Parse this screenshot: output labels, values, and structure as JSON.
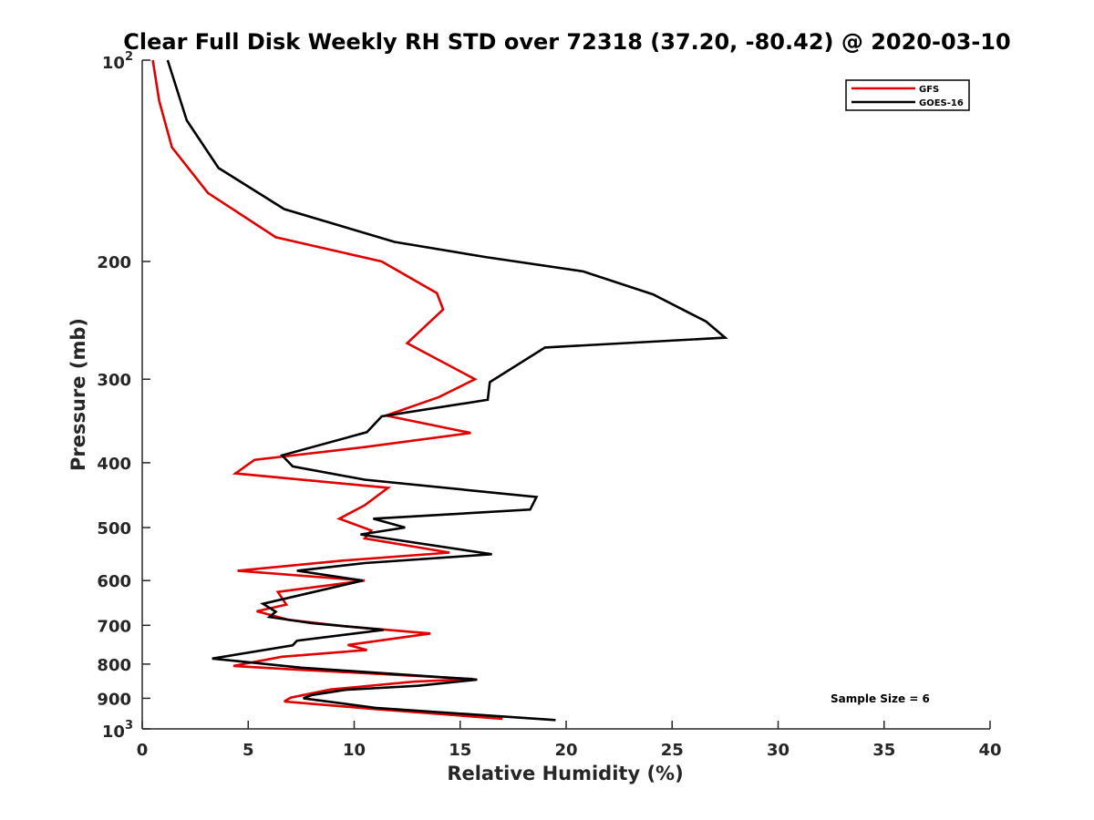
{
  "chart_data": {
    "type": "line",
    "title": "Clear Full Disk Weekly RH STD over 72318 (37.20, -80.42) @ 2020-03-10",
    "xlabel": "Relative Humidity (%)",
    "ylabel": "Pressure (mb)",
    "xlim": [
      0,
      40
    ],
    "ylim": [
      100,
      1000
    ],
    "y_scale": "log",
    "y_reversed": true,
    "grid": false,
    "legend_position": "top-right",
    "x_ticks": [
      0,
      5,
      10,
      15,
      20,
      25,
      30,
      35,
      40
    ],
    "x_tick_labels": [
      "0",
      "5",
      "10",
      "15",
      "20",
      "25",
      "30",
      "35",
      "40"
    ],
    "y_ticks": [
      200,
      300,
      400,
      500,
      600,
      700,
      800,
      900
    ],
    "y_tick_labels": [
      "200",
      "300",
      "400",
      "500",
      "600",
      "700",
      "800",
      "900"
    ],
    "y_decade_labels": [
      {
        "value": 100,
        "base": "10",
        "exp": "2"
      },
      {
        "value": 1000,
        "base": "10",
        "exp": "3"
      }
    ],
    "annotation": "Sample Size = 6",
    "series": [
      {
        "name": "GFS",
        "color": "#e00000",
        "points": [
          [
            0.5,
            100
          ],
          [
            0.8,
            115
          ],
          [
            1.4,
            135
          ],
          [
            3.1,
            158
          ],
          [
            6.3,
            184
          ],
          [
            11.3,
            200
          ],
          [
            13.9,
            223
          ],
          [
            14.2,
            236
          ],
          [
            12.5,
            265
          ],
          [
            15.7,
            300
          ],
          [
            14.0,
            319
          ],
          [
            11.5,
            340
          ],
          [
            15.5,
            361
          ],
          [
            10.5,
            379
          ],
          [
            5.3,
            396
          ],
          [
            4.4,
            415
          ],
          [
            11.6,
            436
          ],
          [
            10.5,
            463
          ],
          [
            9.3,
            485
          ],
          [
            10.8,
            505
          ],
          [
            10.5,
            519
          ],
          [
            14.5,
            545
          ],
          [
            9.5,
            560
          ],
          [
            4.5,
            580
          ],
          [
            10.5,
            600
          ],
          [
            6.4,
            624
          ],
          [
            6.8,
            652
          ],
          [
            5.4,
            667
          ],
          [
            6.9,
            687
          ],
          [
            9.5,
            702
          ],
          [
            13.6,
            720
          ],
          [
            9.7,
            749
          ],
          [
            10.6,
            762
          ],
          [
            6.6,
            780
          ],
          [
            4.3,
            805
          ],
          [
            6.9,
            814
          ],
          [
            15.6,
            842
          ],
          [
            12.8,
            850
          ],
          [
            8.9,
            873
          ],
          [
            7.0,
            898
          ],
          [
            6.7,
            910
          ],
          [
            10.8,
            933
          ],
          [
            17.0,
            966
          ]
        ]
      },
      {
        "name": "GOES-16",
        "color": "#000000",
        "points": [
          [
            1.2,
            100
          ],
          [
            2.1,
            123
          ],
          [
            3.6,
            145
          ],
          [
            6.7,
            167
          ],
          [
            11.9,
            187
          ],
          [
            16.2,
            197
          ],
          [
            20.8,
            207
          ],
          [
            24.1,
            224
          ],
          [
            26.6,
            246
          ],
          [
            27.5,
            260
          ],
          [
            19.0,
            269
          ],
          [
            16.4,
            303
          ],
          [
            16.3,
            322
          ],
          [
            11.3,
            341
          ],
          [
            10.6,
            360
          ],
          [
            6.6,
            390
          ],
          [
            7.1,
            405
          ],
          [
            10.5,
            424
          ],
          [
            18.6,
            450
          ],
          [
            18.3,
            470
          ],
          [
            10.9,
            485
          ],
          [
            12.4,
            500
          ],
          [
            10.3,
            512
          ],
          [
            16.5,
            548
          ],
          [
            10.5,
            565
          ],
          [
            7.3,
            580
          ],
          [
            10.4,
            600
          ],
          [
            5.7,
            650
          ],
          [
            6.3,
            668
          ],
          [
            6.0,
            680
          ],
          [
            8.0,
            695
          ],
          [
            11.4,
            711
          ],
          [
            7.3,
            738
          ],
          [
            7.1,
            750
          ],
          [
            3.3,
            785
          ],
          [
            7.5,
            810
          ],
          [
            15.8,
            844
          ],
          [
            13.0,
            862
          ],
          [
            9.6,
            874
          ],
          [
            8.0,
            890
          ],
          [
            7.6,
            900
          ],
          [
            11.0,
            930
          ],
          [
            19.5,
            970
          ]
        ]
      }
    ]
  }
}
